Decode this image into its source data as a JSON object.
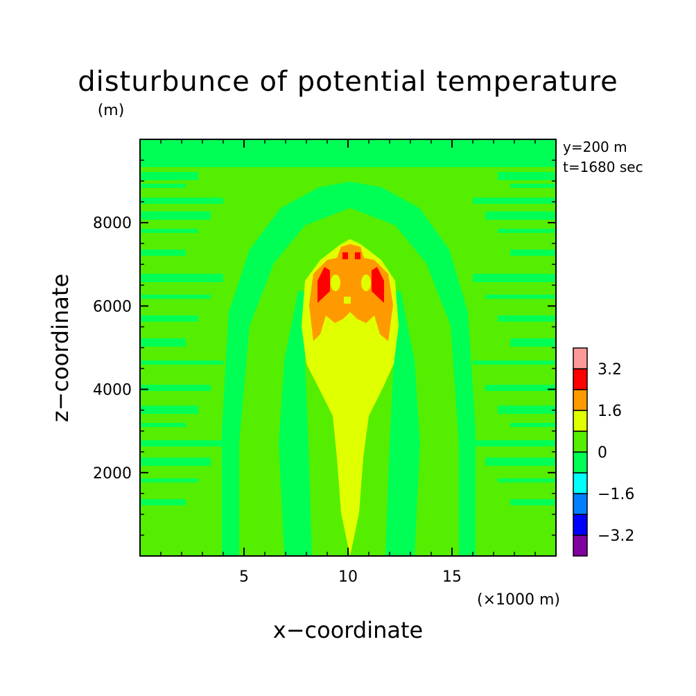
{
  "chart_data": {
    "type": "heatmap",
    "title": "disturbunce of potential temperature",
    "y_unit_label": "(m)",
    "x_unit_label": "(×1000 m)",
    "xlabel": "x−coordinate",
    "ylabel": "z−coordinate",
    "annotations": [
      "y=200 m",
      "t=1680 sec"
    ],
    "xlim": [
      0,
      20
    ],
    "ylim": [
      0,
      10000
    ],
    "x_ticks": [
      5,
      10,
      15
    ],
    "x_tick_labels": [
      "5",
      "10",
      "15"
    ],
    "y_ticks": [
      2000,
      4000,
      6000,
      8000
    ],
    "y_tick_labels": [
      "2000",
      "4000",
      "6000",
      "8000"
    ],
    "colorbar": {
      "levels": [
        -4.0,
        -3.2,
        -2.4,
        -1.6,
        -0.8,
        0,
        0.8,
        1.6,
        2.4,
        3.2,
        4.0
      ],
      "colors": [
        "#8000a0",
        "#0000ff",
        "#0080ff",
        "#00ffff",
        "#00ff55",
        "#55ee00",
        "#e0ff00",
        "#ff9900",
        "#ff0000",
        "#ff9999"
      ],
      "tick_labels": [
        "3.2",
        "1.6",
        "0",
        "−1.6",
        "−3.2"
      ],
      "tick_values": [
        3.2,
        1.6,
        0,
        -1.6,
        -3.2
      ]
    }
  },
  "colors": {
    "background_field": "#55ee00",
    "weak_negative": "#00ff55",
    "weak_positive": "#e0ff00",
    "moderate_positive": "#ff9900",
    "strong_positive": "#ff0000"
  }
}
